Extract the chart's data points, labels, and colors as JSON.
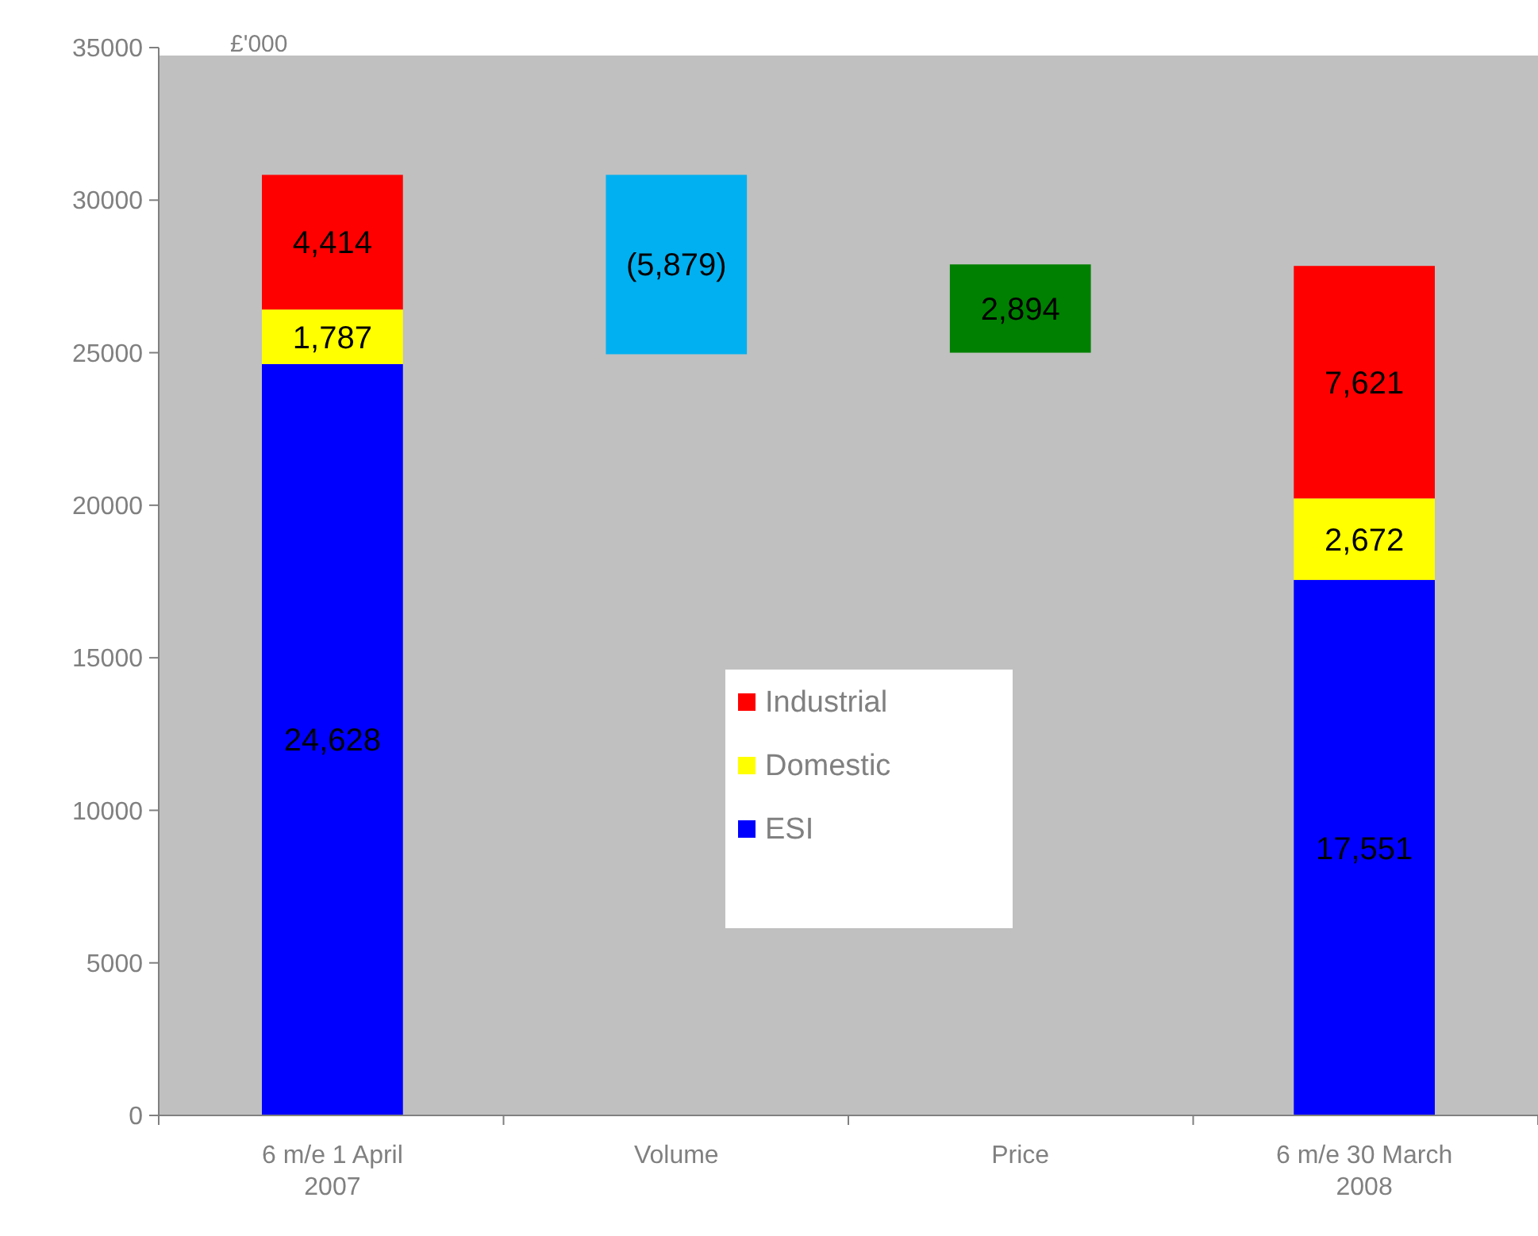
{
  "chart_data": {
    "type": "bar",
    "stacked": true,
    "categories": [
      "6 m/e 1 April 2007",
      "Volume",
      "Price",
      "6 m/e 30 March 2008"
    ],
    "series": [
      {
        "name": "ESI",
        "color": "#0000ff",
        "values": [
          24628,
          null,
          null,
          17551
        ],
        "value_labels": [
          "24,628",
          null,
          null,
          "17,551"
        ]
      },
      {
        "name": "Domestic",
        "color": "#ffff00",
        "values": [
          1787,
          null,
          null,
          2672
        ],
        "value_labels": [
          "1,787",
          null,
          null,
          "2,672"
        ]
      },
      {
        "name": "Industrial",
        "color": "#ff0000",
        "values": [
          4414,
          null,
          null,
          7621
        ],
        "value_labels": [
          "4,414",
          null,
          null,
          "7,621"
        ]
      },
      {
        "color": "#00b0f0",
        "values": [
          null,
          -5879,
          null,
          null
        ],
        "base": [
          null,
          30829,
          null,
          null
        ],
        "value_labels": [
          null,
          "(5,879)",
          null,
          null
        ]
      },
      {
        "color": "#008000",
        "values": [
          null,
          null,
          2894,
          null
        ],
        "base": [
          null,
          null,
          25000,
          null
        ],
        "value_labels": [
          null,
          null,
          "2,894",
          null
        ]
      }
    ],
    "ylim": [
      0,
      35000
    ],
    "yticks": [
      0,
      5000,
      10000,
      15000,
      20000,
      25000,
      30000,
      35000
    ],
    "legend": "center",
    "annotations": [
      "£'000"
    ]
  }
}
